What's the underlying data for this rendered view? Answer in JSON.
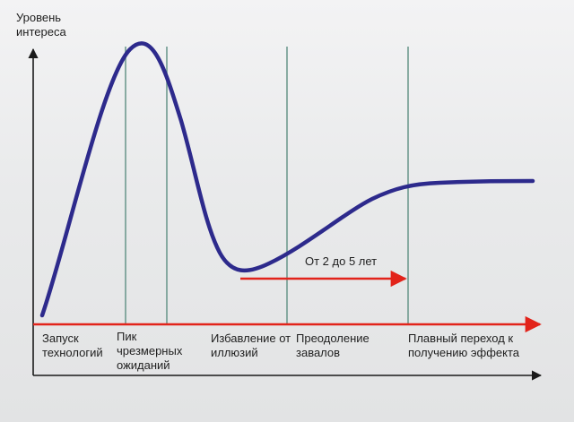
{
  "y_axis_label": [
    "Уровень",
    "интереса"
  ],
  "duration_label": "От 2 до 5 лет",
  "stages": [
    {
      "lines": [
        "Запуск",
        "технологий"
      ]
    },
    {
      "lines": [
        "Пик",
        "чрезмерных",
        "ожиданий"
      ]
    },
    {
      "lines": [
        "Избавление от",
        "иллюзий"
      ]
    },
    {
      "lines": [
        "Преодоление",
        "завалов"
      ]
    },
    {
      "lines": [
        "Плавный переход к",
        "получению эффекта"
      ]
    }
  ],
  "colors": {
    "curve": "#2d2a8c",
    "timeline": "#e2231a",
    "dividers": "#6f9a8f",
    "axes": "#1a1a1a"
  }
}
